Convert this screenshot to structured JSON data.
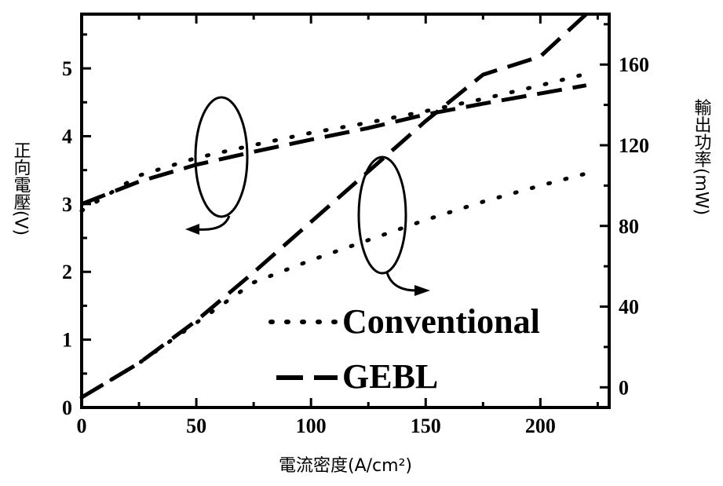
{
  "chart_data": {
    "type": "line",
    "xlabel": "電流密度(A/cm²)",
    "ylabel_left": "正向電壓(V)",
    "ylabel_right": "輸出功率(mW)",
    "xlim": [
      0,
      230
    ],
    "ylim_left": [
      0,
      5.8
    ],
    "ylim_right": [
      -10,
      185
    ],
    "x_ticks": [
      0,
      50,
      100,
      150,
      200
    ],
    "y_ticks_left": [
      0,
      1,
      2,
      3,
      4,
      5
    ],
    "y_ticks_right": [
      0,
      40,
      80,
      120,
      160
    ],
    "legend": {
      "placement": "bottom-right",
      "entries": [
        {
          "label": "Conventional",
          "style": "dotted"
        },
        {
          "label": "GEBL",
          "style": "dashed"
        }
      ]
    },
    "series": [
      {
        "name": "Conventional",
        "quantity": "voltage",
        "axis": "left",
        "style": "dotted",
        "x": [
          0,
          25,
          50,
          75,
          100,
          125,
          150,
          175,
          200,
          220
        ],
        "y": [
          2.9,
          3.42,
          3.68,
          3.87,
          4.05,
          4.2,
          4.37,
          4.55,
          4.75,
          4.92
        ]
      },
      {
        "name": "GEBL",
        "quantity": "voltage",
        "axis": "left",
        "style": "dashed",
        "x": [
          0,
          25,
          50,
          75,
          100,
          125,
          150,
          175,
          200,
          220
        ],
        "y": [
          3.0,
          3.33,
          3.58,
          3.77,
          3.95,
          4.12,
          4.32,
          4.48,
          4.63,
          4.75
        ]
      },
      {
        "name": "Conventional",
        "quantity": "power",
        "axis": "right",
        "style": "dotted",
        "x": [
          0,
          25,
          50,
          75,
          100,
          125,
          150,
          175,
          200,
          220
        ],
        "y": [
          -5,
          12,
          32,
          52,
          63,
          73,
          83,
          92,
          100,
          106
        ]
      },
      {
        "name": "GEBL",
        "quantity": "power",
        "axis": "right",
        "style": "dashed",
        "x": [
          0,
          25,
          50,
          75,
          100,
          125,
          150,
          175,
          200,
          220
        ],
        "y": [
          -5,
          12,
          33,
          57,
          82,
          107,
          132,
          155,
          164,
          185
        ]
      }
    ]
  }
}
